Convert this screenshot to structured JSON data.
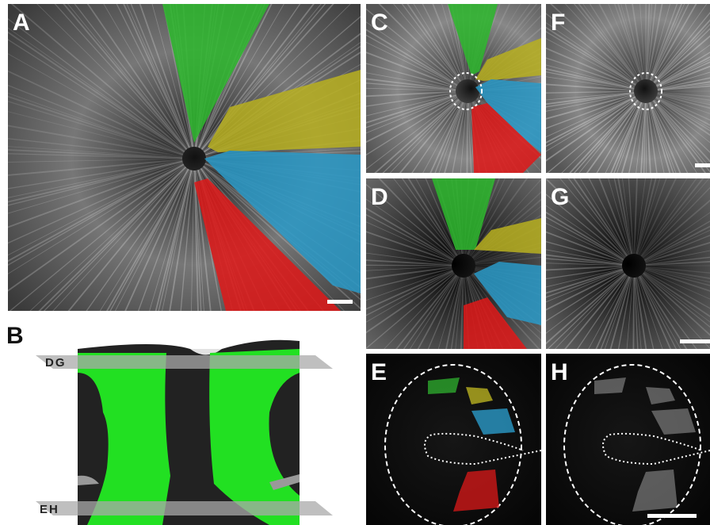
{
  "panels": [
    {
      "label": "A"
    },
    {
      "label": "B"
    },
    {
      "label": "C"
    },
    {
      "label": "D"
    },
    {
      "label": "E"
    },
    {
      "label": "F"
    },
    {
      "label": "G"
    },
    {
      "label": "H"
    }
  ],
  "diagram": {
    "planes": [
      "DG",
      "EH"
    ]
  }
}
